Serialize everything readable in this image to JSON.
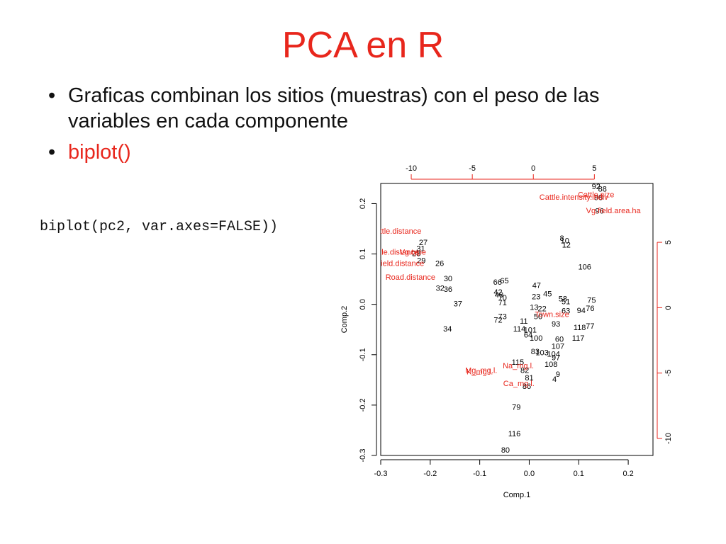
{
  "slide": {
    "title": "PCA en R",
    "bullets": [
      "Graficas combinan los sitios (muestras) con el peso de las variables en cada componente",
      "biplot()"
    ],
    "code": "biplot(pc2, var.axes=FALSE))",
    "accent_color": "#e8261c"
  },
  "chart_data": {
    "type": "scatter",
    "subtype": "biplot",
    "xlabel": "Comp.1",
    "ylabel": "Comp.2",
    "xlim": [
      -0.3,
      0.25
    ],
    "ylim": [
      -0.3,
      0.24
    ],
    "top_xlim": [
      -12.5,
      9.8
    ],
    "right_ylim": [
      -11.3,
      9.5
    ],
    "x_ticks": [
      "-0.3",
      "-0.2",
      "-0.1",
      "0.0",
      "0.1",
      "0.2"
    ],
    "y_ticks": [
      "-0.3",
      "-0.2",
      "-0.1",
      "0.0",
      "0.1",
      "0.2"
    ],
    "top_ticks": [
      "-10",
      "-5",
      "0",
      "5"
    ],
    "right_ticks": [
      "-10",
      "-5",
      "0",
      "5"
    ],
    "grid": false,
    "sample_color": "#000000",
    "variable_color": "#e8261c",
    "samples": [
      {
        "label": "92",
        "x": 0.135,
        "y": 0.233
      },
      {
        "label": "88",
        "x": 0.148,
        "y": 0.228
      },
      {
        "label": "98",
        "x": 0.14,
        "y": 0.211
      },
      {
        "label": "96",
        "x": 0.142,
        "y": 0.184
      },
      {
        "label": "8",
        "x": 0.066,
        "y": 0.13
      },
      {
        "label": "10",
        "x": 0.072,
        "y": 0.125
      },
      {
        "label": "12",
        "x": 0.075,
        "y": 0.117
      },
      {
        "label": "106",
        "x": 0.112,
        "y": 0.073
      },
      {
        "label": "27",
        "x": -0.214,
        "y": 0.122
      },
      {
        "label": "31",
        "x": -0.219,
        "y": 0.11
      },
      {
        "label": "28",
        "x": -0.228,
        "y": 0.1
      },
      {
        "label": "29",
        "x": -0.218,
        "y": 0.086
      },
      {
        "label": "26",
        "x": -0.181,
        "y": 0.08
      },
      {
        "label": "30",
        "x": -0.164,
        "y": 0.05
      },
      {
        "label": "32",
        "x": -0.18,
        "y": 0.031
      },
      {
        "label": "36",
        "x": -0.164,
        "y": 0.029
      },
      {
        "label": "37",
        "x": -0.144,
        "y": 0.0
      },
      {
        "label": "34",
        "x": -0.165,
        "y": -0.05
      },
      {
        "label": "66",
        "x": -0.064,
        "y": 0.043
      },
      {
        "label": "65",
        "x": -0.05,
        "y": 0.046
      },
      {
        "label": "42",
        "x": -0.063,
        "y": 0.023
      },
      {
        "label": "40",
        "x": -0.061,
        "y": 0.018
      },
      {
        "label": "70",
        "x": -0.054,
        "y": 0.012
      },
      {
        "label": "71",
        "x": -0.054,
        "y": 0.002
      },
      {
        "label": "47",
        "x": 0.015,
        "y": 0.037
      },
      {
        "label": "45",
        "x": 0.037,
        "y": 0.02
      },
      {
        "label": "23",
        "x": 0.014,
        "y": 0.014
      },
      {
        "label": "58",
        "x": 0.068,
        "y": 0.01
      },
      {
        "label": "51",
        "x": 0.074,
        "y": 0.004
      },
      {
        "label": "75",
        "x": 0.126,
        "y": 0.007
      },
      {
        "label": "13",
        "x": 0.01,
        "y": -0.007
      },
      {
        "label": "22",
        "x": 0.026,
        "y": -0.01
      },
      {
        "label": "63",
        "x": 0.074,
        "y": -0.014
      },
      {
        "label": "94",
        "x": 0.105,
        "y": -0.013
      },
      {
        "label": "76",
        "x": 0.123,
        "y": -0.009
      },
      {
        "label": "50",
        "x": 0.018,
        "y": -0.025
      },
      {
        "label": "73",
        "x": -0.054,
        "y": -0.025
      },
      {
        "label": "72",
        "x": -0.063,
        "y": -0.032
      },
      {
        "label": "11",
        "x": -0.011,
        "y": -0.034
      },
      {
        "label": "93",
        "x": 0.054,
        "y": -0.04
      },
      {
        "label": "118",
        "x": 0.102,
        "y": -0.047
      },
      {
        "label": "77",
        "x": 0.123,
        "y": -0.044
      },
      {
        "label": "114",
        "x": -0.02,
        "y": -0.05
      },
      {
        "label": "101",
        "x": 0.002,
        "y": -0.052
      },
      {
        "label": "64",
        "x": -0.002,
        "y": -0.062
      },
      {
        "label": "100",
        "x": 0.014,
        "y": -0.068
      },
      {
        "label": "60",
        "x": 0.061,
        "y": -0.07
      },
      {
        "label": "117",
        "x": 0.099,
        "y": -0.068
      },
      {
        "label": "107",
        "x": 0.058,
        "y": -0.084
      },
      {
        "label": "83",
        "x": 0.012,
        "y": -0.095
      },
      {
        "label": "103",
        "x": 0.026,
        "y": -0.097
      },
      {
        "label": "104",
        "x": 0.049,
        "y": -0.1
      },
      {
        "label": "97",
        "x": 0.054,
        "y": -0.107
      },
      {
        "label": "115",
        "x": -0.023,
        "y": -0.116
      },
      {
        "label": "108",
        "x": 0.044,
        "y": -0.12
      },
      {
        "label": "82",
        "x": -0.009,
        "y": -0.132
      },
      {
        "label": "9",
        "x": 0.058,
        "y": -0.14
      },
      {
        "label": "81",
        "x": 0.0,
        "y": -0.147
      },
      {
        "label": "4",
        "x": 0.051,
        "y": -0.15
      },
      {
        "label": "86",
        "x": -0.005,
        "y": -0.164
      },
      {
        "label": "79",
        "x": -0.026,
        "y": -0.205
      },
      {
        "label": "116",
        "x": -0.03,
        "y": -0.258
      },
      {
        "label": "80",
        "x": -0.048,
        "y": -0.29
      }
    ],
    "variables": [
      {
        "label": "Cattle.intensity.indiv",
        "x": 0.09,
        "y": 0.212
      },
      {
        "label": "Cattle.size",
        "x": 0.135,
        "y": 0.217
      },
      {
        "label": "Vg.field.area.ha",
        "x": 0.17,
        "y": 0.185
      },
      {
        "label": "Cattle.distance",
        "x": -0.27,
        "y": 0.144
      },
      {
        "label": "Cattle.distance",
        "x": -0.275,
        "y": 0.103
      },
      {
        "label": "Vg.type",
        "x": -0.235,
        "y": 0.103
      },
      {
        "label": "Vg.field.distance",
        "x": -0.27,
        "y": 0.08
      },
      {
        "label": "Road.distance",
        "x": -0.24,
        "y": 0.053
      },
      {
        "label": "Town.size",
        "x": 0.046,
        "y": -0.021
      },
      {
        "label": "Na_mg.l.",
        "x": -0.022,
        "y": -0.123
      },
      {
        "label": "Mg_mg.l.",
        "x": -0.097,
        "y": -0.132
      },
      {
        "label": "K_mg.l.",
        "x": -0.1,
        "y": -0.135
      },
      {
        "label": "Ca_mg.l.",
        "x": -0.021,
        "y": -0.158
      }
    ]
  }
}
